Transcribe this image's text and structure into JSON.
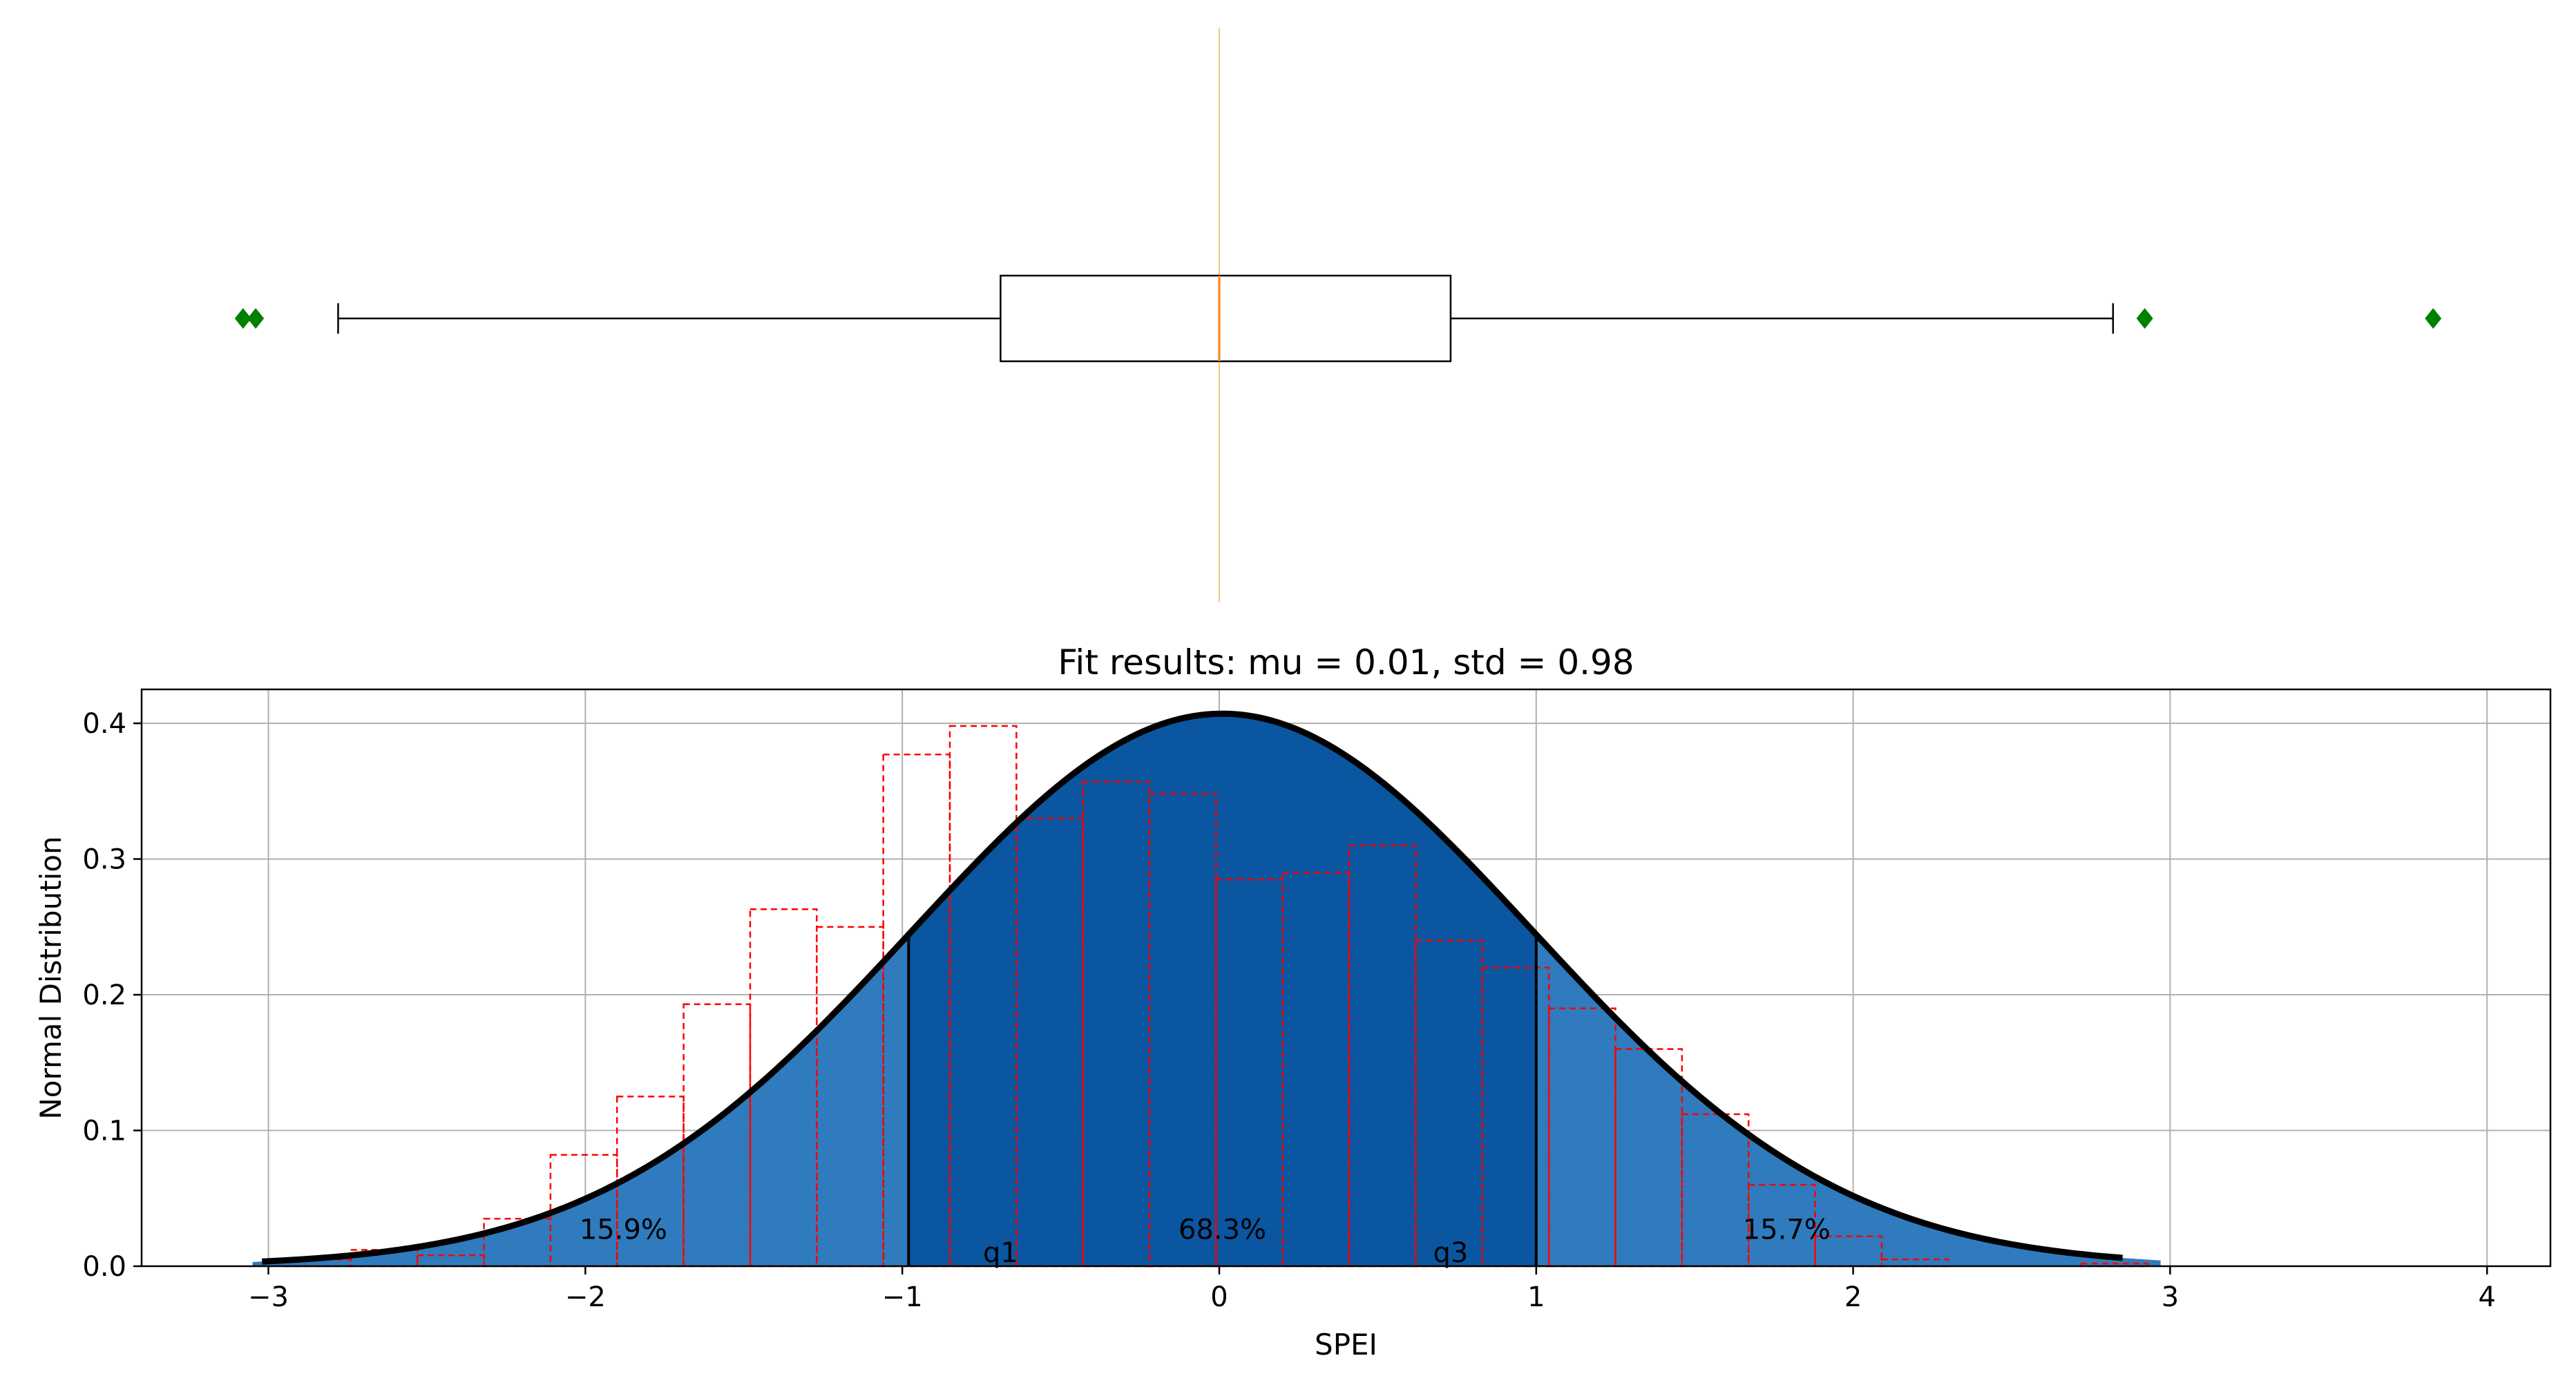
{
  "chart_data": [
    {
      "type": "box",
      "orientation": "horizontal",
      "whisker_low": -2.78,
      "q1": -0.69,
      "median": 0.0,
      "q3": 0.73,
      "whisker_high": 2.82,
      "outliers": [
        -3.08,
        -3.04,
        2.92,
        3.83
      ],
      "colors": {
        "box": "#000000",
        "median": "#ff7f0e",
        "outlier": "#008000"
      }
    },
    {
      "type": "histogram",
      "title": "Fit results: mu = 0.01,  std = 0.98",
      "xlabel": "SPEI",
      "ylabel": "Normal Distribution",
      "xlim": [
        -3.4,
        4.2
      ],
      "ylim": [
        0.0,
        0.425
      ],
      "xticks": [
        -3,
        -2,
        -1,
        0,
        1,
        2,
        3,
        4
      ],
      "xtick_labels": [
        "−3",
        "−2",
        "−1",
        "0",
        "1",
        "2",
        "3",
        "4"
      ],
      "yticks": [
        0.0,
        0.1,
        0.2,
        0.3,
        0.4
      ],
      "ytick_labels": [
        "0.0",
        "0.1",
        "0.2",
        "0.3",
        "0.4"
      ],
      "grid": true,
      "fit": {
        "mu": 0.01,
        "std": 0.98
      },
      "histogram": {
        "bin_edges": [
          -2.95,
          -2.74,
          -2.53,
          -2.32,
          -2.11,
          -1.9,
          -1.69,
          -1.48,
          -1.27,
          -1.06,
          -0.85,
          -0.64,
          -0.43,
          -0.22,
          -0.01,
          0.2,
          0.41,
          0.62,
          0.83,
          1.04,
          1.25,
          1.46,
          1.67,
          1.88,
          2.09,
          2.3,
          2.51,
          2.72,
          2.93
        ],
        "values": [
          0.005,
          0.012,
          0.008,
          0.035,
          0.082,
          0.125,
          0.193,
          0.263,
          0.25,
          0.377,
          0.398,
          0.33,
          0.357,
          0.348,
          0.285,
          0.29,
          0.31,
          0.24,
          0.22,
          0.19,
          0.16,
          0.112,
          0.06,
          0.022,
          0.005,
          0.0,
          0.0,
          0.002
        ],
        "color": "#ff0000"
      },
      "shaded_regions": [
        {
          "from": -3.05,
          "to": -0.98,
          "label": "15.9%",
          "color": "#2f7bbd"
        },
        {
          "from": -0.98,
          "to": 1.0,
          "label": "68.3%",
          "color": "#0b56a0"
        },
        {
          "from": 1.0,
          "to": 2.97,
          "label": "15.7%",
          "color": "#2f7bbd"
        }
      ],
      "quantile_lines": [
        {
          "x": -0.98,
          "label": "q1"
        },
        {
          "x": 1.0,
          "label": "q3"
        }
      ],
      "annotations": [
        {
          "text": "15.9%",
          "x": -1.88,
          "y": 0.017
        },
        {
          "text": "68.3%",
          "x": 0.01,
          "y": 0.017
        },
        {
          "text": "15.7%",
          "x": 1.79,
          "y": 0.017
        },
        {
          "text": "q1",
          "x": -0.69,
          "y": 0.0
        },
        {
          "text": "q3",
          "x": 0.73,
          "y": 0.0
        }
      ],
      "curve_x_range": [
        -3.02,
        2.85
      ]
    }
  ]
}
